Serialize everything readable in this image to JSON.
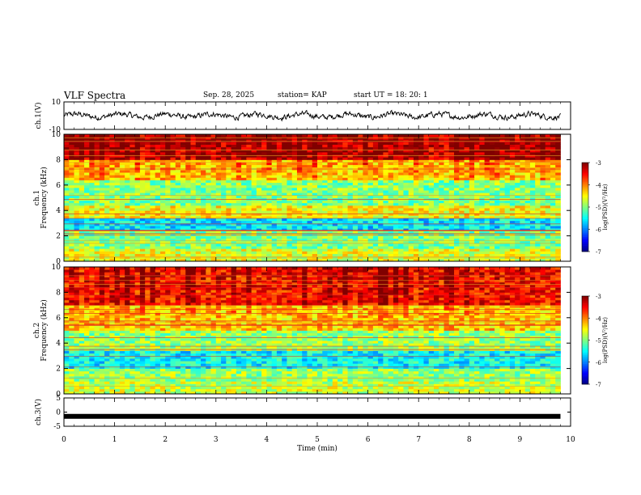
{
  "header": {
    "title": "VLF Spectra",
    "date": "Sep. 28, 2025",
    "station": "station= KAP",
    "start": "start UT =  18: 20: 1"
  },
  "chart_data": [
    {
      "type": "line",
      "panel": "ch1-waveform",
      "ylabel": "ch.1(V)",
      "ylim": [
        -10,
        10
      ],
      "yticks": [
        "10",
        "-10"
      ],
      "xlim": [
        0,
        10
      ],
      "trace_range_approx": [
        -5,
        5
      ]
    },
    {
      "type": "heatmap",
      "panel": "ch1-spectrogram",
      "ylabel_top": "ch.1",
      "ylabel": "Frequency (kHz)",
      "ylim": [
        0,
        10
      ],
      "yticks": [
        "0",
        "2",
        "4",
        "6",
        "8",
        "10"
      ],
      "xlim": [
        0,
        9.8
      ],
      "colorbar": {
        "label": "log(PSD)(V²/Hz)",
        "range": [
          -7,
          -3
        ],
        "ticks": [
          "-3",
          "-4",
          "-5",
          "-6",
          "-7"
        ]
      },
      "bands_log_psd": [
        {
          "f_low": 0,
          "f_high": 1,
          "value": -4.6
        },
        {
          "f_low": 1,
          "f_high": 2.5,
          "value": -5.0
        },
        {
          "f_low": 2.5,
          "f_high": 3.5,
          "value": -5.6
        },
        {
          "f_low": 3.5,
          "f_high": 4.5,
          "value": -4.5
        },
        {
          "f_low": 4.5,
          "f_high": 6.5,
          "value": -5.0
        },
        {
          "f_low": 6.5,
          "f_high": 8,
          "value": -4.3
        },
        {
          "f_low": 8,
          "f_high": 10,
          "value": -3.3
        }
      ]
    },
    {
      "type": "heatmap",
      "panel": "ch2-spectrogram",
      "ylabel_top": "ch.2",
      "ylabel": "Frequency (kHz)",
      "ylim": [
        0,
        10
      ],
      "yticks": [
        "0",
        "2",
        "4",
        "6",
        "8",
        "10"
      ],
      "xlim": [
        0,
        9.8
      ],
      "colorbar": {
        "label": "log(PSD)(V²/Hz)",
        "range": [
          -7,
          -3
        ],
        "ticks": [
          "-3",
          "-4",
          "-5",
          "-6",
          "-7"
        ]
      },
      "bands_log_psd": [
        {
          "f_low": 0,
          "f_high": 1,
          "value": -4.7
        },
        {
          "f_low": 1,
          "f_high": 2,
          "value": -4.9
        },
        {
          "f_low": 2,
          "f_high": 3.5,
          "value": -5.5
        },
        {
          "f_low": 3.5,
          "f_high": 5,
          "value": -4.9
        },
        {
          "f_low": 5,
          "f_high": 7,
          "value": -4.3
        },
        {
          "f_low": 7,
          "f_high": 10,
          "value": -3.6
        }
      ]
    },
    {
      "type": "line",
      "panel": "ch3-waveform",
      "ylabel": "ch.3(V)",
      "ylim": [
        -5,
        5
      ],
      "yticks": [
        "5",
        "0",
        "-5"
      ],
      "xlim": [
        0,
        10
      ],
      "trace_value_approx": -1.5
    }
  ],
  "xaxis": {
    "label": "Time (min)",
    "ticks": [
      "0",
      "1",
      "2",
      "3",
      "4",
      "5",
      "6",
      "7",
      "8",
      "9",
      "10"
    ]
  }
}
